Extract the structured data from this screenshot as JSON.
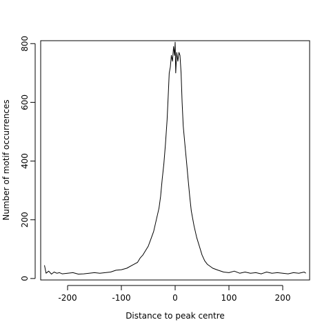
{
  "chart_data": {
    "type": "line",
    "title": "",
    "xlabel": "Distance to peak centre",
    "ylabel": "Number of motif occurrences",
    "xlim": [
      -250,
      250
    ],
    "ylim": [
      -5,
      810
    ],
    "xticks": [
      -200,
      -100,
      0,
      100,
      200
    ],
    "yticks": [
      0,
      200,
      400,
      600,
      800
    ],
    "grid": false,
    "legend": "none",
    "line_color": "#000000",
    "series": [
      {
        "x": [
          -243,
          -240,
          -235,
          -230,
          -225,
          -220,
          -215,
          -210,
          -200,
          -190,
          -180,
          -170,
          -160,
          -150,
          -140,
          -130,
          -120,
          -110,
          -100,
          -90,
          -80,
          -70,
          -65,
          -60,
          -55,
          -50,
          -45,
          -40,
          -35,
          -30,
          -27,
          -24,
          -21,
          -18,
          -15,
          -13,
          -11,
          -9,
          -7,
          -5,
          -3,
          -1,
          0,
          1,
          3,
          5,
          7,
          9,
          11,
          13,
          15,
          18,
          21,
          24,
          27,
          30,
          35,
          40,
          45,
          50,
          55,
          60,
          70,
          80,
          90,
          100,
          110,
          120,
          130,
          140,
          150,
          160,
          170,
          180,
          190,
          200,
          210,
          220,
          230,
          240,
          243
        ],
        "y": [
          45,
          18,
          25,
          15,
          22,
          18,
          20,
          16,
          18,
          20,
          15,
          16,
          18,
          20,
          18,
          20,
          22,
          28,
          30,
          35,
          45,
          55,
          70,
          80,
          95,
          110,
          135,
          160,
          200,
          240,
          280,
          340,
          390,
          460,
          540,
          620,
          700,
          720,
          760,
          740,
          790,
          760,
          805,
          700,
          770,
          740,
          770,
          760,
          700,
          600,
          520,
          460,
          400,
          340,
          280,
          230,
          180,
          140,
          110,
          80,
          60,
          48,
          35,
          28,
          22,
          20,
          25,
          18,
          22,
          18,
          20,
          16,
          22,
          18,
          20,
          18,
          16,
          20,
          18,
          22,
          18
        ]
      }
    ]
  }
}
